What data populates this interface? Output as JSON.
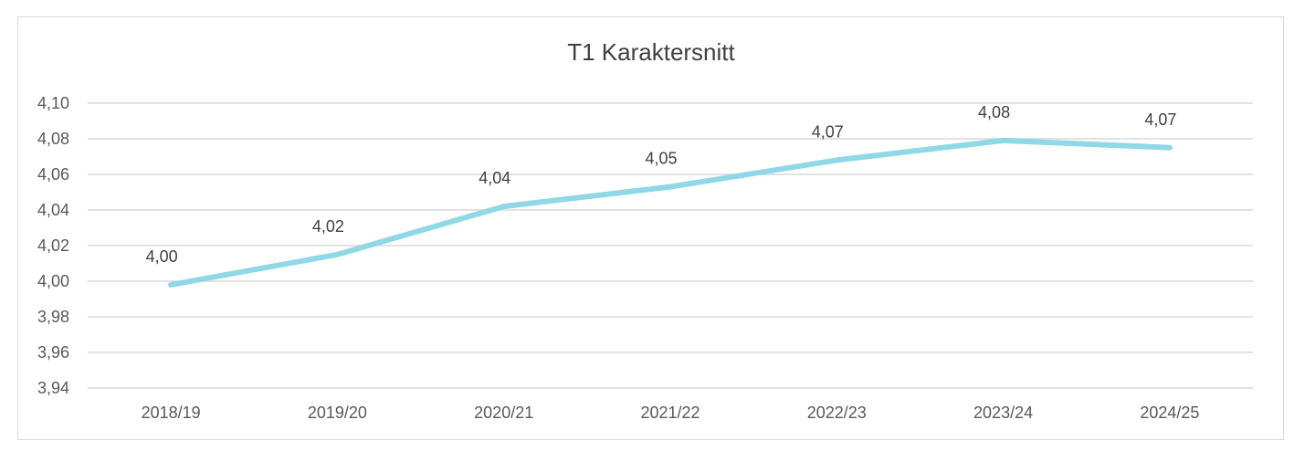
{
  "chart_data": {
    "type": "line",
    "title": "T1 Karaktersnitt",
    "categories": [
      "2018/19",
      "2019/20",
      "2020/21",
      "2021/22",
      "2022/23",
      "2023/24",
      "2024/25"
    ],
    "values": [
      3.998,
      4.015,
      4.042,
      4.053,
      4.068,
      4.079,
      4.075
    ],
    "data_labels": [
      "4,00",
      "4,02",
      "4,04",
      "4,05",
      "4,07",
      "4,08",
      "4,07"
    ],
    "ylim": [
      3.94,
      4.1
    ],
    "yticks": [
      "3,94",
      "3,96",
      "3,98",
      "4,00",
      "4,02",
      "4,04",
      "4,06",
      "4,08",
      "4,10"
    ],
    "grid": true,
    "line_color": "#8fd8e6",
    "grid_color": "#d9d9d9"
  }
}
